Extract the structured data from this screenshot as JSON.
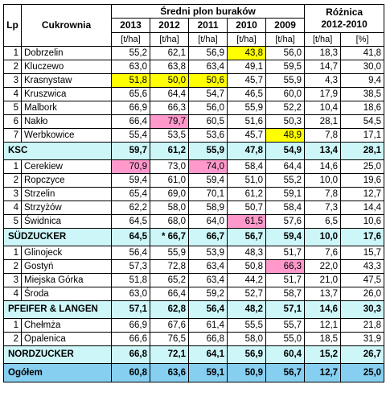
{
  "header": {
    "lp": "Lp",
    "cukrownia": "Cukrownia",
    "title": "Średni plon buraków",
    "diff_line1": "Różnica",
    "diff_line2": "2012-2010",
    "years": [
      "2013",
      "2012",
      "2011",
      "2010",
      "2009"
    ],
    "units": [
      "[t/ha]",
      "[t/ha]",
      "[t/ha]",
      "[t/ha]",
      "[t/ha]",
      "[t/ha]",
      "[%]"
    ]
  },
  "highlight_colors": {
    "yellow": "#ffff00",
    "pink": "#ff99cc",
    "total_row": "#cdf6f8",
    "grand_row": "#86cff1"
  },
  "rows": [
    {
      "type": "item",
      "lp": "1",
      "name": "Dobrzelin",
      "v": [
        "55,2",
        "62,1",
        "56,9",
        "43,8",
        "56,0",
        "18,3",
        "41,8"
      ],
      "hl": {
        "3": "yel"
      }
    },
    {
      "type": "item",
      "lp": "2",
      "name": "Kluczewo",
      "v": [
        "63,0",
        "63,8",
        "63,4",
        "49,1",
        "59,5",
        "14,7",
        "30,0"
      ],
      "hl": {}
    },
    {
      "type": "item",
      "lp": "3",
      "name": "Krasnystaw",
      "v": [
        "51,8",
        "50,0",
        "50,6",
        "45,7",
        "55,9",
        "4,3",
        "9,4"
      ],
      "hl": {
        "0": "yel",
        "1": "yel",
        "2": "yel"
      }
    },
    {
      "type": "item",
      "lp": "4",
      "name": "Kruszwica",
      "v": [
        "65,6",
        "64,4",
        "54,7",
        "46,5",
        "60,0",
        "17,9",
        "38,5"
      ],
      "hl": {}
    },
    {
      "type": "item",
      "lp": "5",
      "name": "Malbork",
      "v": [
        "66,9",
        "66,3",
        "56,0",
        "55,9",
        "52,2",
        "10,4",
        "18,6"
      ],
      "hl": {}
    },
    {
      "type": "item",
      "lp": "6",
      "name": "Nakło",
      "v": [
        "66,4",
        "79,7",
        "60,5",
        "51,6",
        "50,3",
        "28,1",
        "54,5"
      ],
      "hl": {
        "1": "pink"
      }
    },
    {
      "type": "item",
      "lp": "7",
      "name": "Werbkowice",
      "v": [
        "55,4",
        "53,5",
        "53,6",
        "45,7",
        "48,9",
        "7,8",
        "17,1"
      ],
      "hl": {
        "4": "yel"
      }
    },
    {
      "type": "total",
      "name": "KSC",
      "v": [
        "59,7",
        "61,2",
        "55,9",
        "47,8",
        "54,9",
        "13,4",
        "28,1"
      ],
      "hl": {}
    },
    {
      "type": "item",
      "lp": "1",
      "name": "Cerekiew",
      "v": [
        "70,9",
        "73,0",
        "74,0",
        "58,4",
        "64,4",
        "14,6",
        "25,0"
      ],
      "hl": {
        "0": "pink",
        "2": "pink"
      }
    },
    {
      "type": "item",
      "lp": "2",
      "name": "Ropczyce",
      "v": [
        "59,4",
        "61,0",
        "59,4",
        "51,0",
        "55,2",
        "10,0",
        "19,6"
      ],
      "hl": {}
    },
    {
      "type": "item",
      "lp": "3",
      "name": "Strzelin",
      "v": [
        "65,4",
        "69,0",
        "70,1",
        "61,2",
        "59,1",
        "7,8",
        "12,7"
      ],
      "hl": {}
    },
    {
      "type": "item",
      "lp": "4",
      "name": "Strzyżów",
      "v": [
        "62,2",
        "58,0",
        "58,9",
        "50,7",
        "58,4",
        "7,3",
        "14,4"
      ],
      "hl": {}
    },
    {
      "type": "item",
      "lp": "5",
      "name": "Świdnica",
      "v": [
        "64,5",
        "68,0",
        "64,0",
        "61,5",
        "57,6",
        "6,5",
        "10,6"
      ],
      "hl": {
        "3": "pink"
      }
    },
    {
      "type": "total",
      "name": "SÜDZUCKER",
      "v": [
        "64,5",
        "* 66,7",
        "66,7",
        "56,7",
        "59,4",
        "10,0",
        "17,6"
      ],
      "hl": {}
    },
    {
      "type": "item",
      "lp": "1",
      "name": "Glinojeck",
      "v": [
        "56,4",
        "55,9",
        "53,9",
        "48,3",
        "51,7",
        "7,6",
        "15,7"
      ],
      "hl": {}
    },
    {
      "type": "item",
      "lp": "2",
      "name": "Gostyń",
      "v": [
        "57,3",
        "72,8",
        "63,4",
        "50,8",
        "66,3",
        "22,0",
        "43,3"
      ],
      "hl": {
        "4": "pink"
      }
    },
    {
      "type": "item",
      "lp": "3",
      "name": "Miejska Górka",
      "v": [
        "51,8",
        "65,2",
        "63,4",
        "44,2",
        "51,7",
        "21,0",
        "47,5"
      ],
      "hl": {}
    },
    {
      "type": "item",
      "lp": "4",
      "name": "Środa",
      "v": [
        "63,0",
        "66,4",
        "59,2",
        "52,7",
        "58,7",
        "13,7",
        "26,0"
      ],
      "hl": {}
    },
    {
      "type": "total",
      "name": "PFEIFER & LANGEN",
      "v": [
        "57,1",
        "62,8",
        "56,4",
        "48,2",
        "57,1",
        "14,6",
        "30,3"
      ],
      "hl": {}
    },
    {
      "type": "item",
      "lp": "1",
      "name": "Chełmża",
      "v": [
        "66,9",
        "67,6",
        "61,4",
        "55,5",
        "55,7",
        "12,1",
        "21,8"
      ],
      "hl": {}
    },
    {
      "type": "item",
      "lp": "2",
      "name": "Opalenica",
      "v": [
        "66,6",
        "76,5",
        "66,8",
        "58,0",
        "55,0",
        "18,5",
        "31,9"
      ],
      "hl": {}
    },
    {
      "type": "total",
      "name": "NORDZUCKER",
      "v": [
        "66,8",
        "72,1",
        "64,1",
        "56,9",
        "60,4",
        "15,2",
        "26,7"
      ],
      "hl": {}
    },
    {
      "type": "grand",
      "name": "Ogółem",
      "v": [
        "60,8",
        "63,6",
        "59,1",
        "50,9",
        "56,7",
        "12,7",
        "25,0"
      ],
      "hl": {
        "1": "pink",
        "3": "yel"
      }
    }
  ]
}
